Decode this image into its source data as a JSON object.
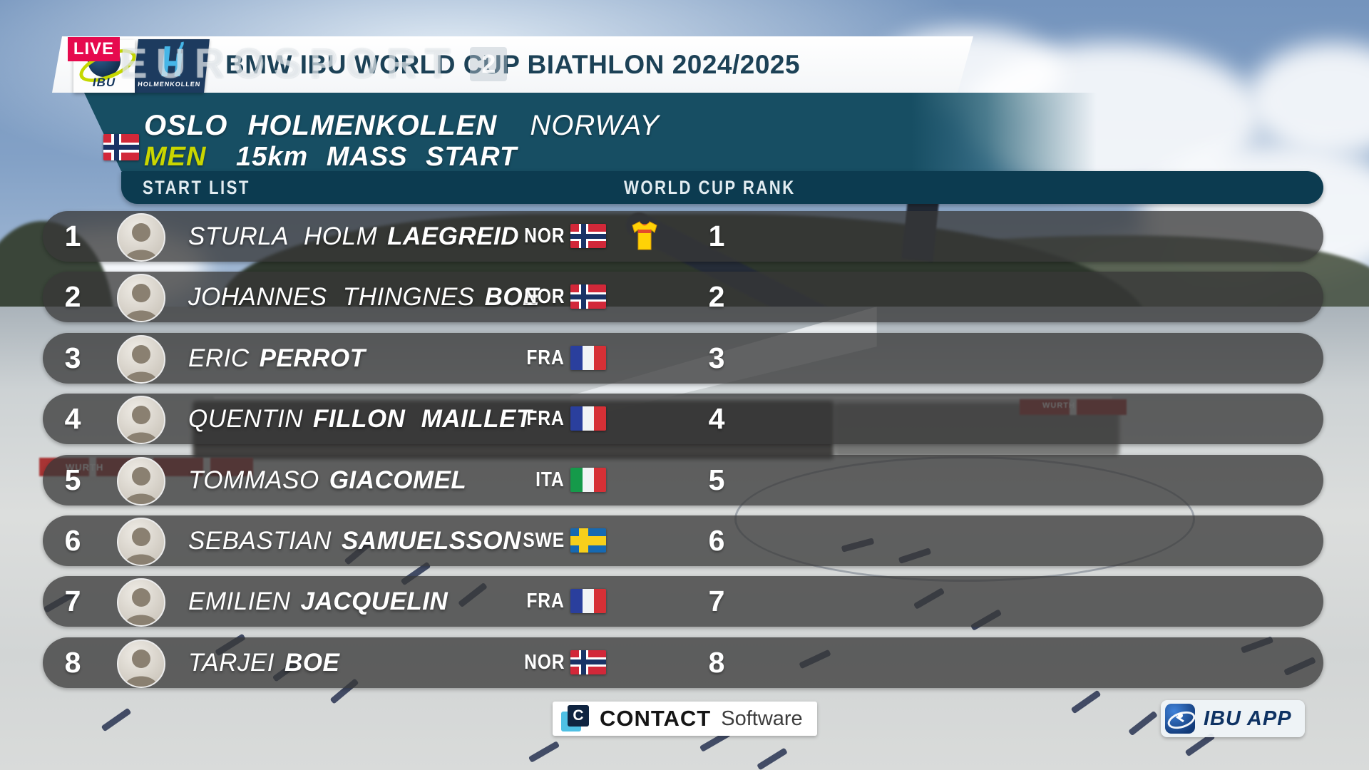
{
  "colors": {
    "accent_yellow": "#c9d600",
    "teal_panel": "#174e63",
    "teal_bar": "#0c3b50",
    "live_red": "#e60a4e",
    "leader_jersey_yellow": "#ffd206",
    "row_overlay": "rgba(55,55,55,0.76)"
  },
  "broadcast": {
    "live": "LIVE",
    "watermark_text": "EUROSPORT",
    "watermark_channel": "2",
    "ibu_logo": "IBU",
    "holmenkollen_logo": "HOLMENKOLLEN",
    "title_prefix": "BMW IBU",
    "title_main": "WORLD CUP BIATHLON",
    "title_season": "2024/2025"
  },
  "event": {
    "flag": "NOR",
    "location": "OSLO  HOLMENKOLLEN",
    "country": "NORWAY",
    "category": "MEN",
    "race": "15km  MASS  START"
  },
  "table": {
    "left_header": "START LIST",
    "right_header": "WORLD CUP RANK",
    "rows": [
      {
        "bib": "1",
        "given": "STURLA  HOLM",
        "family": "LAEGREID",
        "nat": "NOR",
        "leader_jersey": true,
        "wc_rank": "1"
      },
      {
        "bib": "2",
        "given": "JOHANNES  THINGNES",
        "family": "BOE",
        "nat": "NOR",
        "leader_jersey": false,
        "wc_rank": "2"
      },
      {
        "bib": "3",
        "given": "ERIC",
        "family": "PERROT",
        "nat": "FRA",
        "leader_jersey": false,
        "wc_rank": "3"
      },
      {
        "bib": "4",
        "given": "QUENTIN",
        "family": "FILLON  MAILLET",
        "nat": "FRA",
        "leader_jersey": false,
        "wc_rank": "4"
      },
      {
        "bib": "5",
        "given": "TOMMASO",
        "family": "GIACOMEL",
        "nat": "ITA",
        "leader_jersey": false,
        "wc_rank": "5"
      },
      {
        "bib": "6",
        "given": "SEBASTIAN",
        "family": "SAMUELSSON",
        "nat": "SWE",
        "leader_jersey": false,
        "wc_rank": "6"
      },
      {
        "bib": "7",
        "given": "EMILIEN",
        "family": "JACQUELIN",
        "nat": "FRA",
        "leader_jersey": false,
        "wc_rank": "7"
      },
      {
        "bib": "8",
        "given": "TARJEI",
        "family": "BOE",
        "nat": "NOR",
        "leader_jersey": false,
        "wc_rank": "8"
      }
    ]
  },
  "sponsors": {
    "contact_initial": "C",
    "contact_name": "CONTACT",
    "contact_suffix": "Software",
    "ibu_app": "IBU APP"
  },
  "background": {
    "ads": {
      "wurth": "WURTH"
    }
  },
  "flags": {
    "NOR": {
      "type": "nordic",
      "bg": "#d22839",
      "cross": "#ffffff",
      "inner": "#1a3366"
    },
    "SWE": {
      "type": "nordic",
      "bg": "#1669b2",
      "cross": "#f7cf1b",
      "inner": "#f7cf1b"
    },
    "FRA": {
      "type": "vertical",
      "colors": [
        "#2a3f9d",
        "#f2f4f6",
        "#d63036"
      ]
    },
    "ITA": {
      "type": "vertical",
      "colors": [
        "#159a4a",
        "#f2f4f6",
        "#d63036"
      ]
    }
  }
}
